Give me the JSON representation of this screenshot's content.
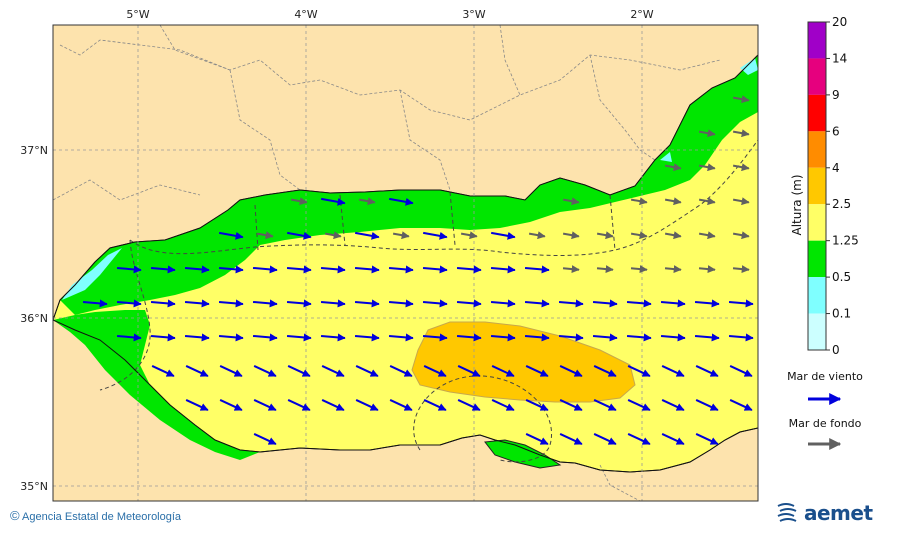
{
  "map": {
    "lon_labels": [
      "5°W",
      "4°W",
      "3°W",
      "2°W"
    ],
    "lat_labels": [
      "37°N",
      "36°N",
      "35°N"
    ],
    "lon_range": [
      -5.5,
      -1.2
    ],
    "lat_range": [
      34.9,
      37.75
    ]
  },
  "colorbar": {
    "title": "Altura (m)",
    "levels": [
      "20",
      "14",
      "9",
      "6",
      "4",
      "2.5",
      "1.25",
      "0.5",
      "0.1",
      "0"
    ],
    "colors": [
      "#a000c8",
      "#e6007e",
      "#ff0000",
      "#ff8c00",
      "#ffc800",
      "#ffff66",
      "#00e600",
      "#7fffff",
      "#ccffff"
    ]
  },
  "legend": {
    "wind_label": "Mar de viento",
    "wind_color": "#0000dd",
    "swell_label": "Mar de fondo",
    "swell_color": "#606060"
  },
  "credit": {
    "symbol": "©",
    "text": "Agencia Estatal de Meteorología"
  },
  "logo": {
    "text": "aemet",
    "icon": "aemet-logo-icon"
  }
}
